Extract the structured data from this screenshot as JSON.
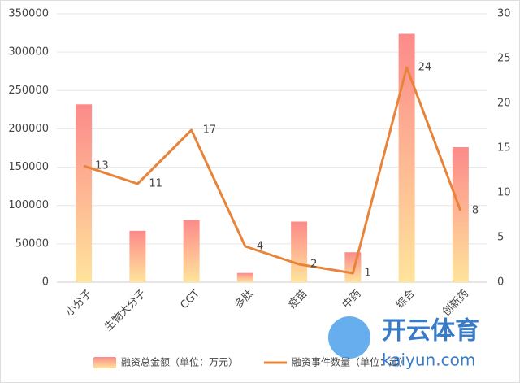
{
  "chart_data": {
    "type": "bar-line",
    "categories": [
      "小分子",
      "生物大分子",
      "CGT",
      "多肽",
      "疫苗",
      "中药",
      "综合",
      "创新药"
    ],
    "series": [
      {
        "name": "融资总金额（单位：万元）",
        "type": "bar",
        "color": [
          "#fc8a8a",
          "#ffe49c"
        ],
        "values": [
          232000,
          67000,
          81000,
          12000,
          79000,
          39000,
          324000,
          176000
        ]
      },
      {
        "name": "融资事件数量（单位：起）",
        "type": "line",
        "axis": "y2",
        "color": "#e8843a",
        "values": [
          13,
          11,
          17,
          4,
          2,
          1,
          24,
          8
        ]
      }
    ],
    "ylim": [
      0,
      350000
    ],
    "yticks": [
      0,
      50000,
      100000,
      150000,
      200000,
      250000,
      300000,
      350000
    ],
    "y2lim": [
      0,
      30
    ],
    "y2ticks": [
      0,
      5,
      10,
      15,
      20,
      25,
      30
    ],
    "grid": true,
    "legend": "bottom"
  },
  "watermark": {
    "title": "开云体育",
    "url": "kaiyun.com"
  }
}
